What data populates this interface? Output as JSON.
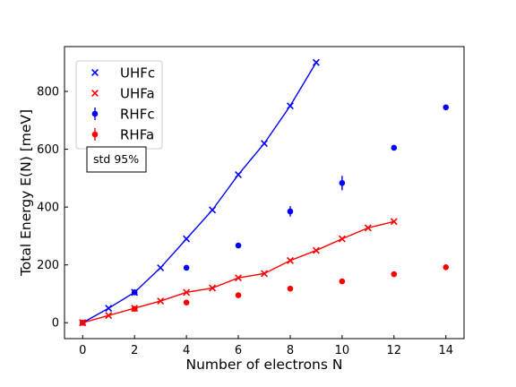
{
  "chart_data": {
    "type": "scatter",
    "xlabel": "Number of electrons N",
    "ylabel": "Total Energy E(N) [meV]",
    "xlim": [
      -0.7,
      14.7
    ],
    "ylim": [
      -55,
      955
    ],
    "xticks": [
      0,
      2,
      4,
      6,
      8,
      10,
      12,
      14
    ],
    "yticks": [
      0,
      200,
      400,
      600,
      800
    ],
    "grid": false,
    "legend_position": "top-left",
    "annotation": "std 95%",
    "series": [
      {
        "name": "UHFc",
        "marker": "x",
        "line": true,
        "color": "#0000ff",
        "x": [
          0,
          1,
          2,
          3,
          4,
          5,
          6,
          7,
          8,
          9
        ],
        "y": [
          0,
          50,
          105,
          190,
          290,
          390,
          512,
          620,
          750,
          900
        ]
      },
      {
        "name": "UHFa",
        "marker": "x",
        "line": true,
        "color": "#ff0000",
        "x": [
          0,
          1,
          2,
          3,
          4,
          5,
          6,
          7,
          8,
          9,
          10,
          11,
          12
        ],
        "y": [
          0,
          25,
          50,
          75,
          105,
          120,
          155,
          170,
          215,
          250,
          290,
          328,
          350
        ]
      },
      {
        "name": "RHFc",
        "marker": "o",
        "line": false,
        "color": "#0000ff",
        "x": [
          0,
          2,
          4,
          6,
          8,
          10,
          12,
          14
        ],
        "y": [
          0,
          105,
          190,
          267,
          385,
          483,
          605,
          745
        ],
        "err": [
          0,
          0,
          0,
          0,
          18,
          25,
          0,
          0
        ]
      },
      {
        "name": "RHFa",
        "marker": "o",
        "line": false,
        "color": "#ff0000",
        "x": [
          0,
          2,
          4,
          6,
          8,
          10,
          12,
          14
        ],
        "y": [
          0,
          48,
          70,
          95,
          118,
          143,
          168,
          192
        ],
        "err": [
          0,
          0,
          0,
          0,
          0,
          0,
          0,
          0
        ]
      }
    ]
  }
}
